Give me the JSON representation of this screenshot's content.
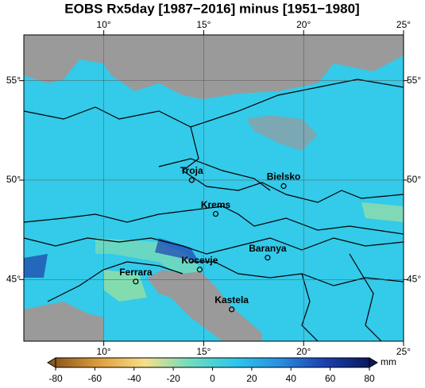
{
  "title": "EOBS Rx5day [1987−2016] minus [1951−1980]",
  "map": {
    "xlim": [
      6,
      25
    ],
    "ylim": [
      41.9,
      57.3
    ],
    "xticks": [
      {
        "value": 10,
        "label": "10°"
      },
      {
        "value": 15,
        "label": "15°"
      },
      {
        "value": 20,
        "label": "20°"
      },
      {
        "value": 25,
        "label": "25°"
      }
    ],
    "yticks": [
      {
        "value": 45,
        "label": "45°"
      },
      {
        "value": 50,
        "label": "50°"
      },
      {
        "value": 55,
        "label": "55°"
      }
    ],
    "grid": true,
    "places": [
      {
        "name": "Troja",
        "lon": 14.4,
        "lat": 50.0
      },
      {
        "name": "Bielsko",
        "lon": 19.0,
        "lat": 49.7
      },
      {
        "name": "Krems",
        "lon": 15.6,
        "lat": 48.3
      },
      {
        "name": "Kocevje",
        "lon": 14.8,
        "lat": 45.5
      },
      {
        "name": "Ferrara",
        "lon": 11.6,
        "lat": 44.9
      },
      {
        "name": "Baranya",
        "lon": 18.2,
        "lat": 46.1
      },
      {
        "name": "Kastela",
        "lon": 16.4,
        "lat": 43.5
      }
    ]
  },
  "colorbar": {
    "range": [
      -80,
      80
    ],
    "ticks": [
      -80,
      -60,
      -40,
      -20,
      0,
      20,
      40,
      60,
      80
    ],
    "unit": "mm",
    "colors": [
      "#8c5a1e",
      "#e0a040",
      "#f7e08a",
      "#6fdcc0",
      "#2ec7ea",
      "#2a8fe0",
      "#1c3fb0",
      "#0a1a5c"
    ]
  }
}
